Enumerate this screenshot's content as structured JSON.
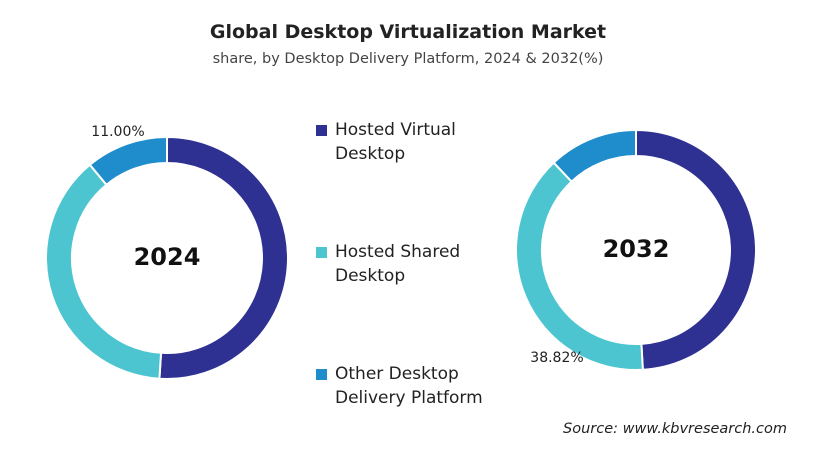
{
  "title": "Global Desktop Virtualization Market",
  "subtitle": "share, by Desktop Delivery Platform, 2024 & 2032(%)",
  "source": "Source: www.kbvresearch.com",
  "chart_data": [
    {
      "type": "pie",
      "title": "2024",
      "categories": [
        "Hosted Virtual Desktop",
        "Hosted Shared Desktop",
        "Other Desktop Delivery Platform"
      ],
      "values": [
        51,
        38,
        11
      ],
      "value_labels": [
        null,
        null,
        "11.00%"
      ],
      "colors": [
        "#2e3192",
        "#4cc5d0",
        "#1f8ccc"
      ]
    },
    {
      "type": "pie",
      "title": "2032",
      "categories": [
        "Hosted Virtual Desktop",
        "Hosted Shared Desktop",
        "Other Desktop Delivery Platform"
      ],
      "values": [
        49,
        38.82,
        12
      ],
      "value_labels": [
        null,
        "38.82%",
        null
      ],
      "colors": [
        "#2e3192",
        "#4cc5d0",
        "#1f8ccc"
      ]
    }
  ]
}
